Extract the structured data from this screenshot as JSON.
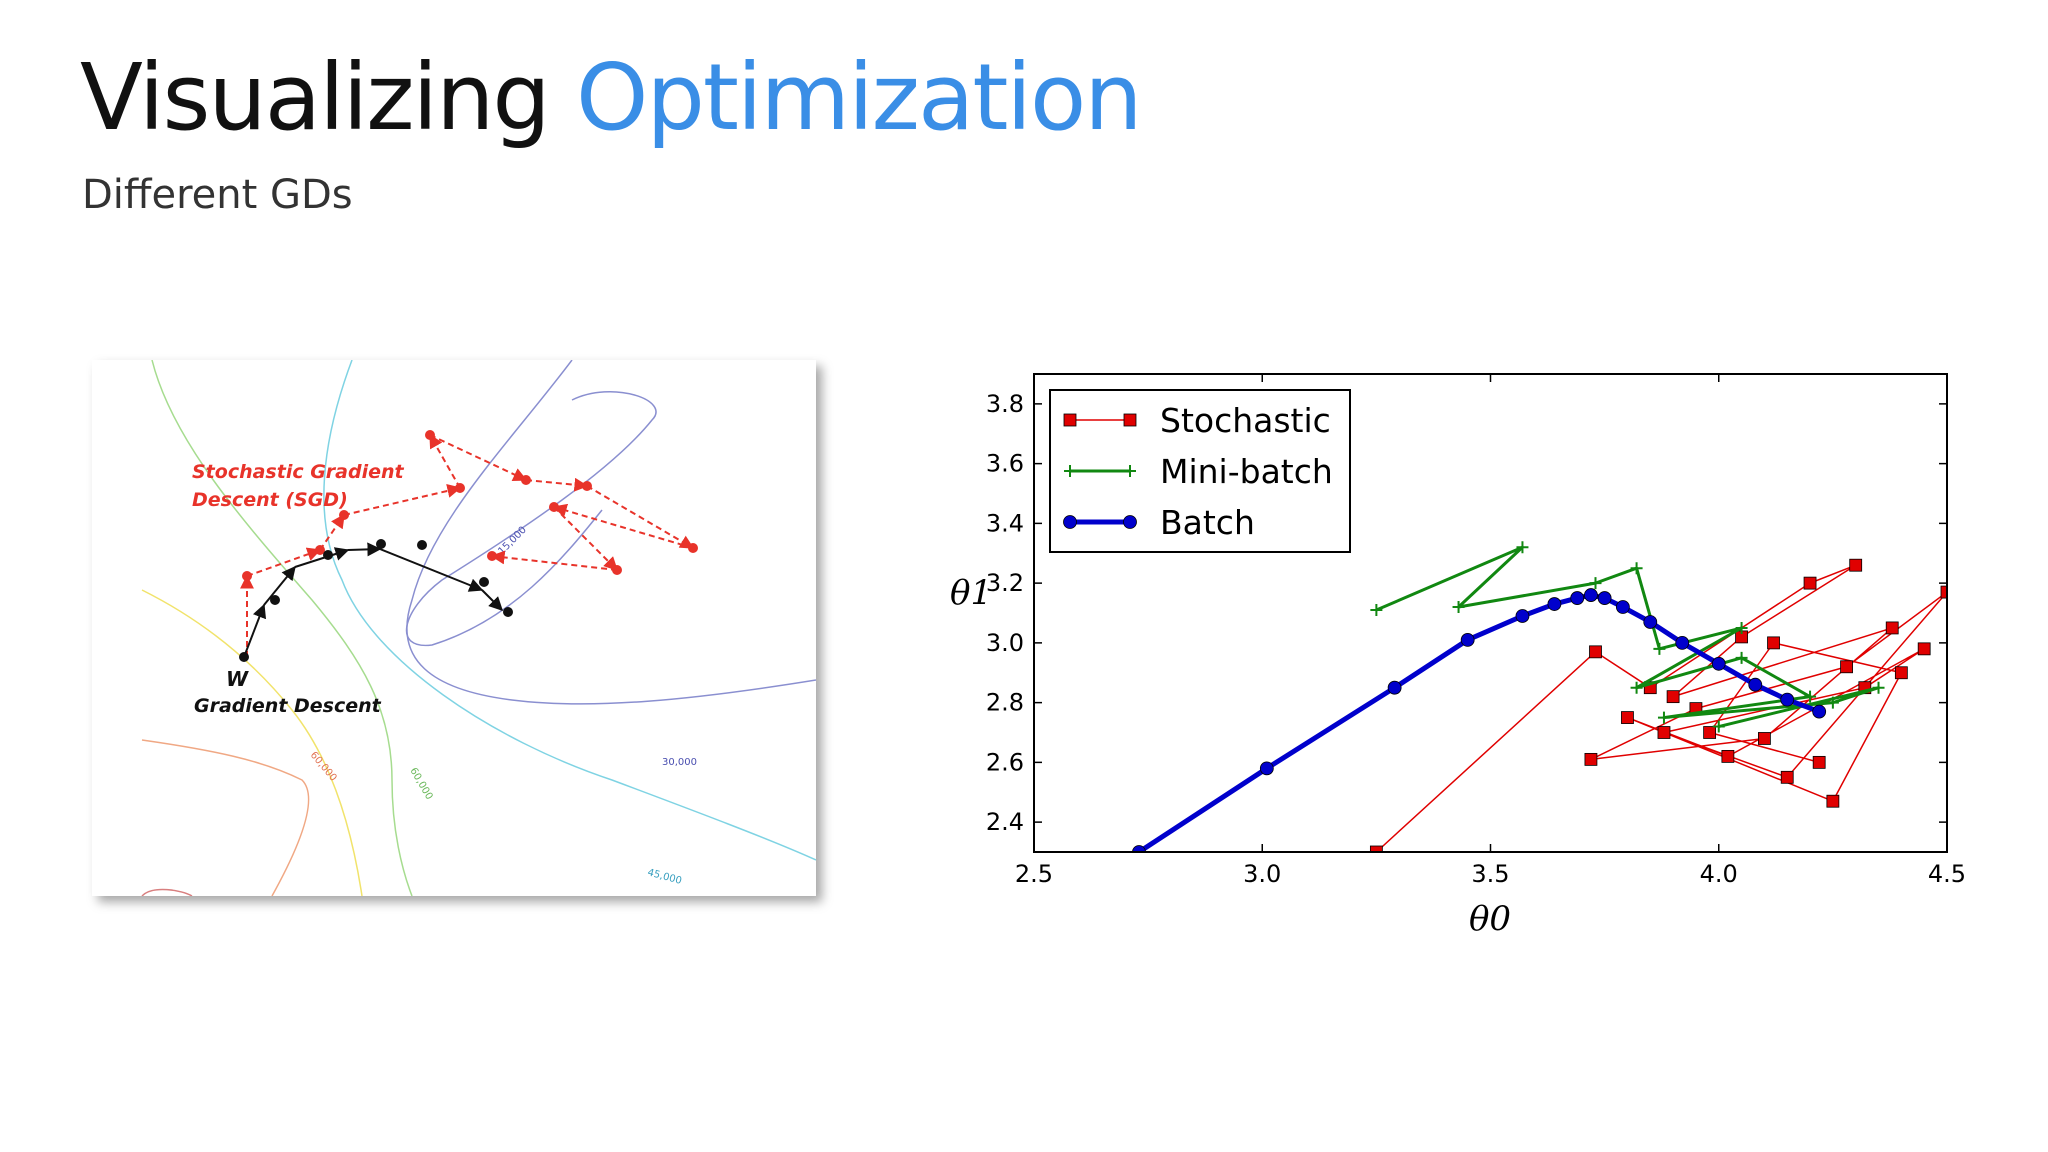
{
  "slide": {
    "title_part1": "Visualizing",
    "title_part2": "Optimization",
    "subtitle": "Different GDs",
    "colors": {
      "title": "#111111",
      "accent": "#3a8ee6",
      "subtitle": "#333333"
    }
  },
  "left_figure": {
    "sgd_label_line1": "Stochastic Gradient",
    "sgd_label_line2": "Descent (SGD)",
    "w_label": "W",
    "gd_label": "Gradient Descent",
    "contour_labels": [
      "15,000",
      "30,000",
      "45,000",
      "60,000",
      "60,000"
    ],
    "colors": {
      "sgd": "#e8332a",
      "gd": "#111111"
    }
  },
  "chart_data": {
    "type": "line",
    "title": "",
    "xlabel": "θ0",
    "ylabel": "θ1",
    "xlim": [
      2.5,
      4.5
    ],
    "ylim": [
      2.3,
      3.9
    ],
    "xticks": [
      "2.5",
      "3.0",
      "3.5",
      "4.0",
      "4.5"
    ],
    "yticks": [
      "2.4",
      "2.6",
      "2.8",
      "3.0",
      "3.2",
      "3.4",
      "3.6",
      "3.8"
    ],
    "grid": false,
    "legend_position": "top-left",
    "series": [
      {
        "name": "Stochastic",
        "color": "#e00000",
        "marker": "square",
        "x": [
          3.25,
          3.73,
          3.85,
          4.2,
          4.3,
          4.05,
          3.9,
          4.38,
          4.1,
          3.72,
          3.95,
          4.28,
          4.5,
          4.15,
          3.88,
          4.32,
          4.45,
          4.02,
          3.8,
          4.25,
          4.4,
          4.12,
          3.98,
          4.22
        ],
        "y": [
          2.3,
          2.97,
          2.85,
          3.2,
          3.26,
          3.02,
          2.82,
          3.05,
          2.68,
          2.61,
          2.78,
          2.92,
          3.17,
          2.55,
          2.7,
          2.85,
          2.98,
          2.62,
          2.75,
          2.47,
          2.9,
          3.0,
          2.7,
          2.6
        ]
      },
      {
        "name": "Mini-batch",
        "color": "#118811",
        "marker": "plus",
        "x": [
          3.25,
          3.57,
          3.43,
          3.73,
          3.82,
          3.87,
          4.05,
          3.82,
          4.05,
          4.2,
          3.88,
          4.25,
          4.35,
          4.0
        ],
        "y": [
          3.11,
          3.32,
          3.12,
          3.2,
          3.25,
          2.98,
          3.05,
          2.85,
          2.95,
          2.82,
          2.75,
          2.8,
          2.85,
          2.72
        ]
      },
      {
        "name": "Batch",
        "color": "#0000cc",
        "marker": "circle",
        "x": [
          2.73,
          3.01,
          3.29,
          3.45,
          3.57,
          3.64,
          3.69,
          3.72,
          3.75,
          3.79,
          3.85,
          3.92,
          4.0,
          4.08,
          4.15,
          4.22
        ],
        "y": [
          2.3,
          2.58,
          2.85,
          3.01,
          3.09,
          3.13,
          3.15,
          3.16,
          3.15,
          3.12,
          3.07,
          3.0,
          2.93,
          2.86,
          2.81,
          2.77
        ]
      }
    ]
  }
}
